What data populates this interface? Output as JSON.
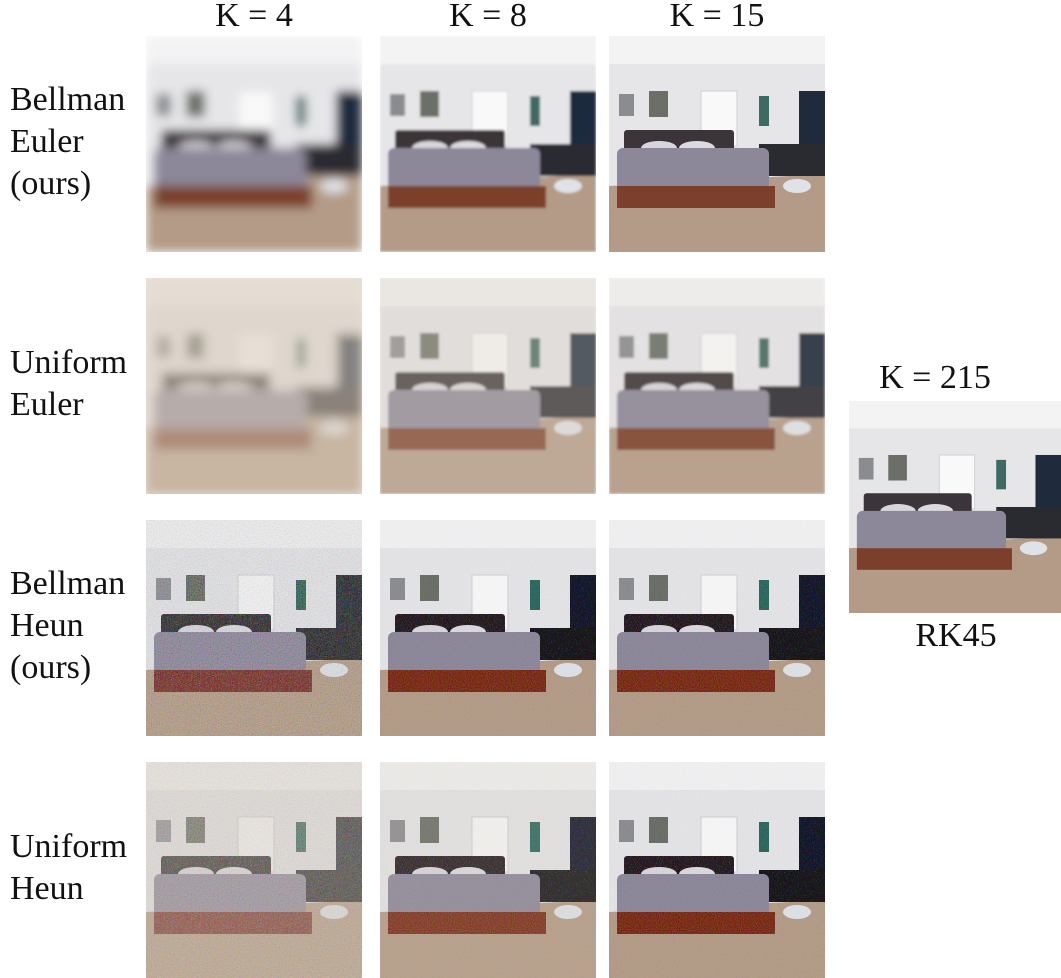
{
  "columns": [
    "K = 4",
    "K = 8",
    "K = 15"
  ],
  "rows": [
    {
      "label": [
        "Bellman",
        "Euler",
        "(ours)"
      ]
    },
    {
      "label": [
        "Uniform",
        "Euler"
      ]
    },
    {
      "label": [
        "Bellman",
        "Heun",
        "(ours)"
      ]
    },
    {
      "label": [
        "Uniform",
        "Heun"
      ]
    }
  ],
  "reference": {
    "title": "K = 215",
    "caption": "RK45"
  }
}
